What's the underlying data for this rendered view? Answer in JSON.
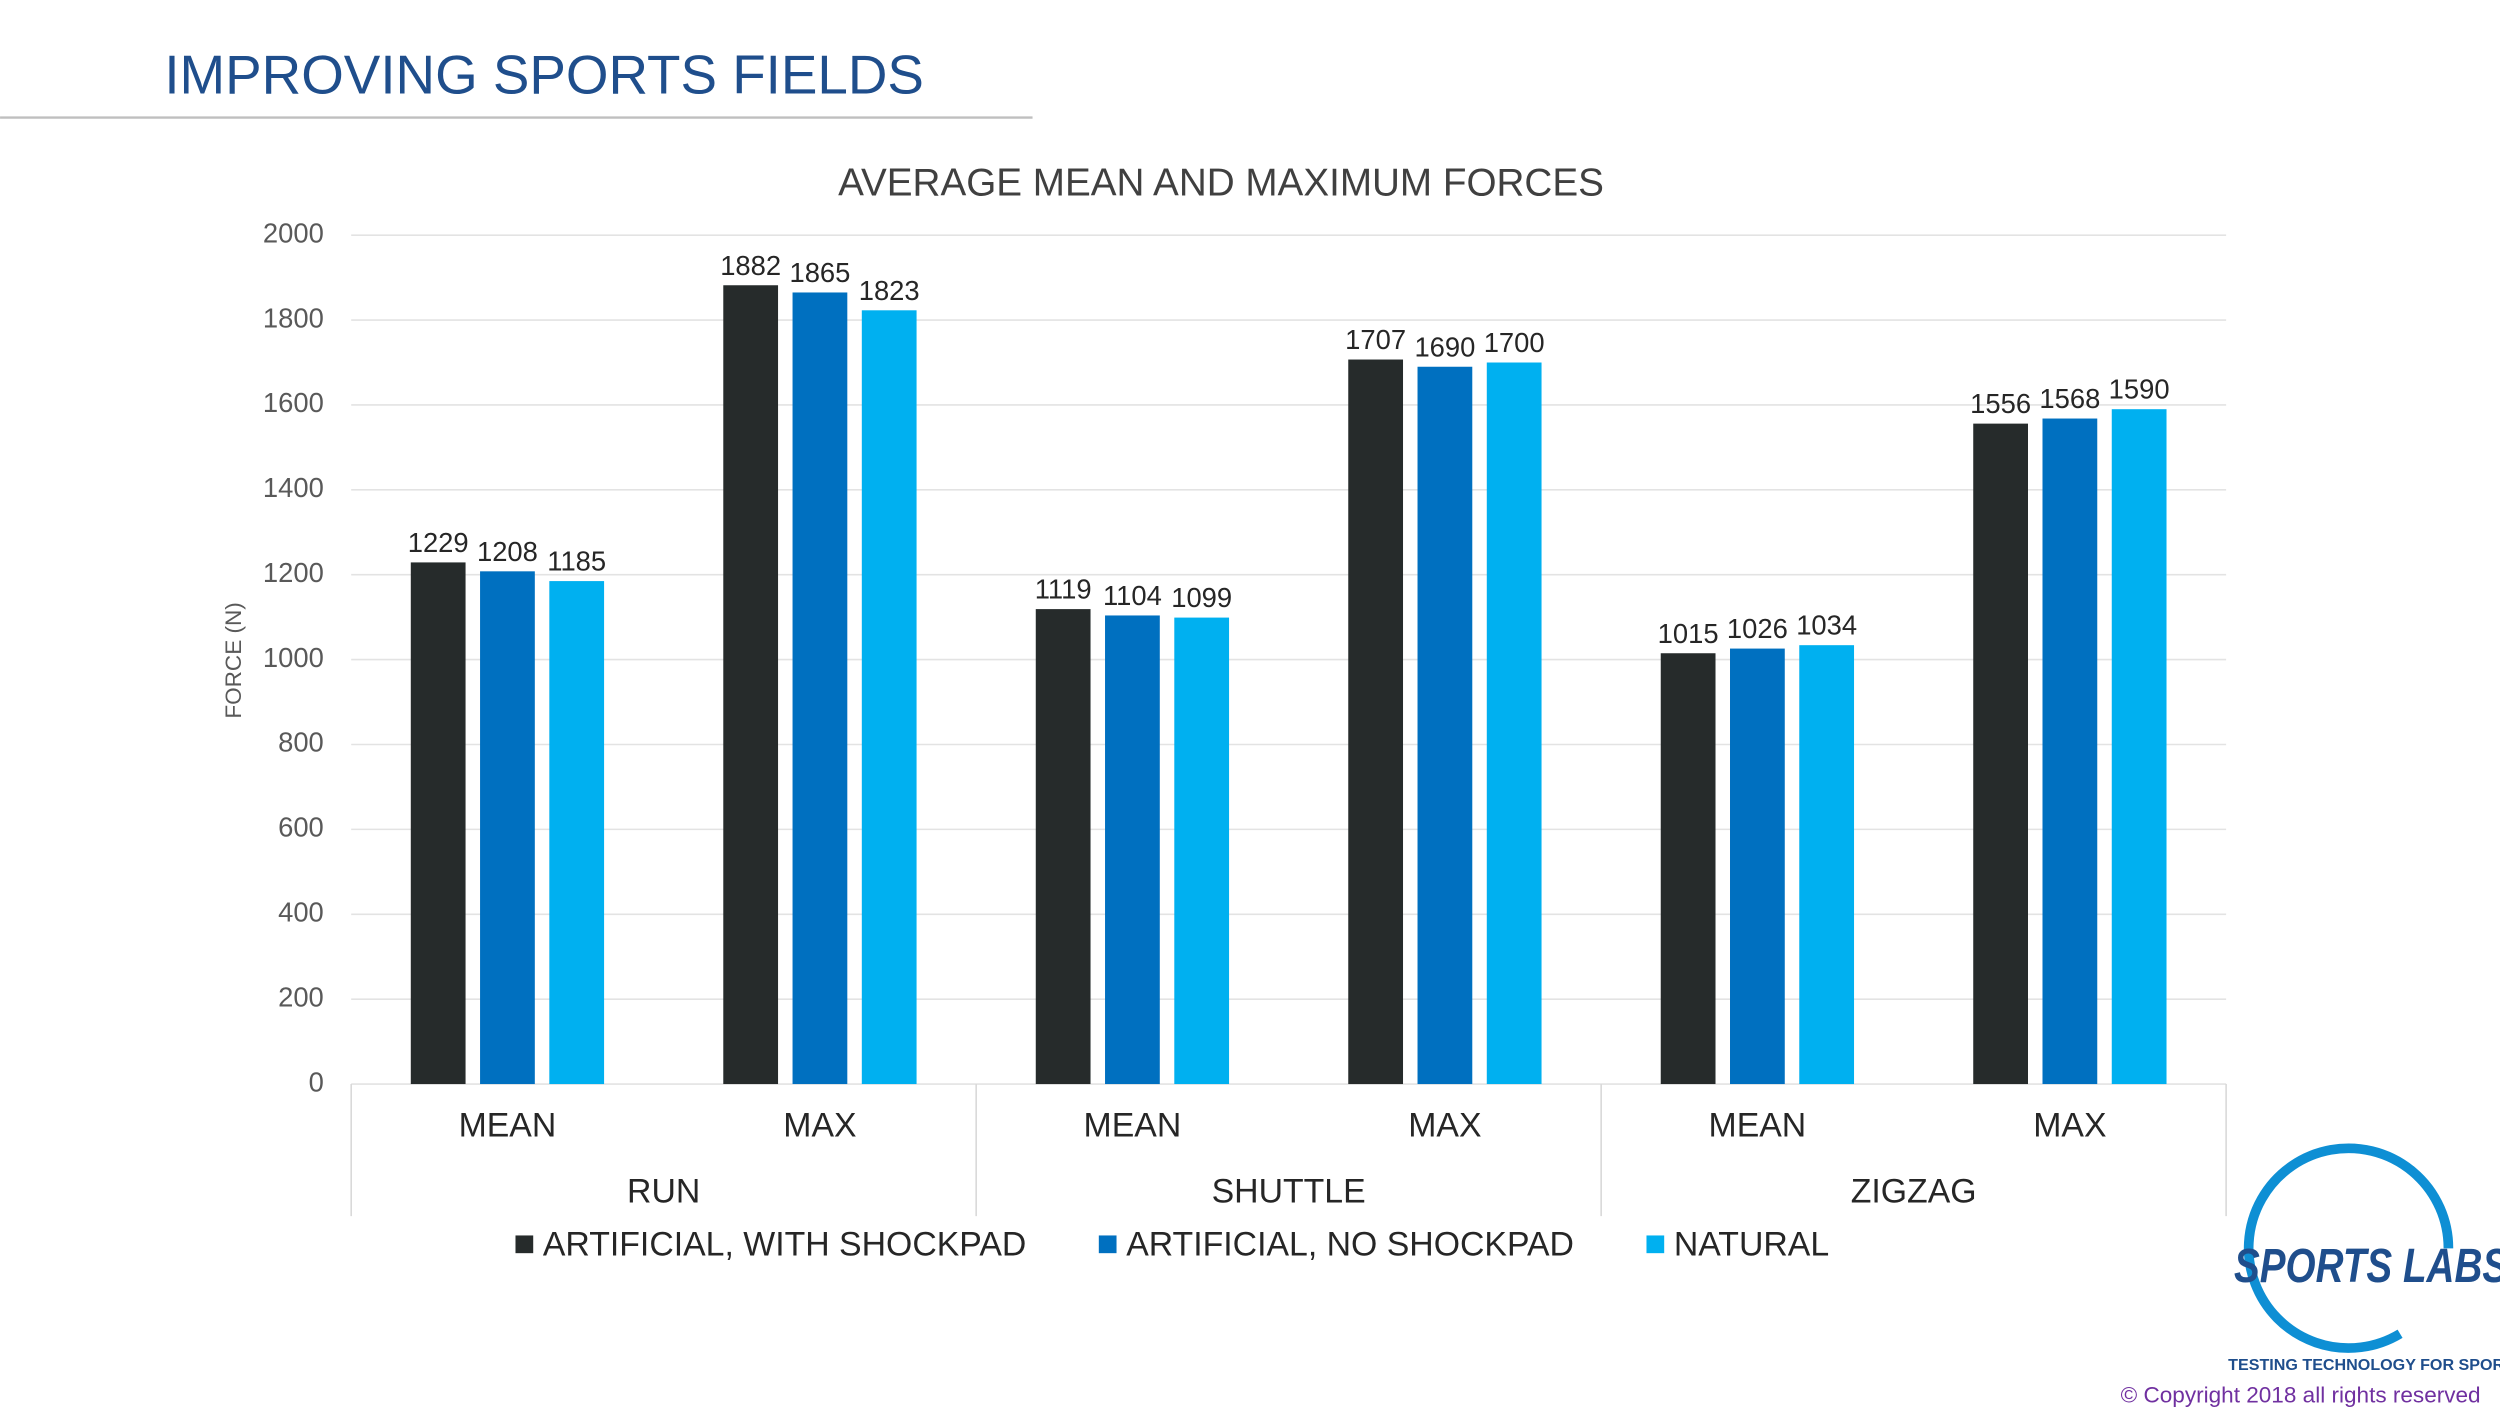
{
  "header": {
    "title": "IMPROVING SPORTS FIELDS"
  },
  "chart_data": {
    "type": "bar",
    "title": "AVERAGE MEAN AND MAXIMUM FORCES",
    "y_label": "FORCE (N)",
    "categories": [
      "MEAN",
      "MAX",
      "MEAN",
      "MAX",
      "MEAN",
      "MAX"
    ],
    "groups": [
      "RUN",
      "SHUTTLE",
      "ZIGZAG"
    ],
    "series": [
      {
        "name": "ARTIFICIAL, WITH SHOCKPAD",
        "color": "#262b2b",
        "values": [
          1229,
          1882,
          1119,
          1707,
          1015,
          1556
        ]
      },
      {
        "name": "ARTIFICIAL, NO SHOCKPAD",
        "color": "#0070c0",
        "values": [
          1208,
          1865,
          1104,
          1690,
          1026,
          1568
        ]
      },
      {
        "name": "NATURAL",
        "color": "#00b0f0",
        "values": [
          1185,
          1823,
          1099,
          1700,
          1034,
          1590
        ]
      }
    ],
    "ylim": [
      0,
      2000
    ],
    "yticks": [
      0,
      200,
      400,
      600,
      800,
      1000,
      1200,
      1400,
      1600,
      1800,
      2000
    ],
    "grid": true,
    "legend": "bottom"
  },
  "logo": {
    "name": "SPORTS LABS",
    "tagline": "TESTING TECHNOLOGY FOR SPORT"
  },
  "footer": {
    "copyright": "© Copyright 2018 all rights reserved"
  }
}
